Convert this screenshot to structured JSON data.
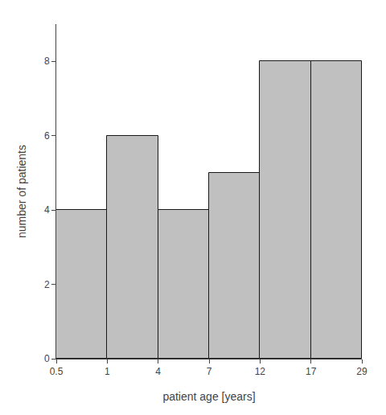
{
  "chart_data": {
    "type": "histogram",
    "bins": [
      "0.5",
      "1",
      "4",
      "7",
      "12",
      "17",
      "29"
    ],
    "values": [
      4,
      6,
      4,
      5,
      8,
      8
    ],
    "color": "#c0c0c0",
    "xlabel": "patient age [years]",
    "ylabel": "number of patients",
    "ylim": [
      0,
      9
    ],
    "yticks": [
      0,
      2,
      4,
      6,
      8
    ],
    "grid": false
  }
}
